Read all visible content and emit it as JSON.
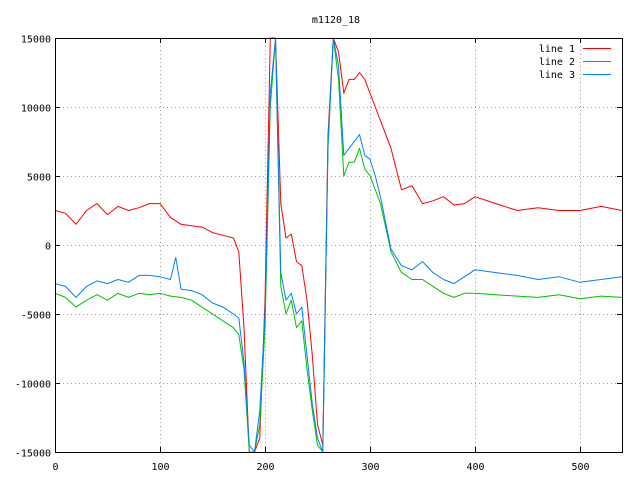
{
  "chart_data": {
    "type": "line",
    "title": "m1120_18",
    "xlabel": "",
    "ylabel": "",
    "xlim": [
      0,
      540
    ],
    "ylim": [
      -15000,
      15000
    ],
    "xticks": [
      0,
      100,
      200,
      300,
      400,
      500
    ],
    "yticks": [
      -15000,
      -10000,
      -5000,
      0,
      5000,
      10000,
      15000
    ],
    "grid": true,
    "legend_position": "top-right",
    "series": [
      {
        "name": "line 1",
        "color": "#ff0000",
        "x": [
          0,
          10,
          20,
          30,
          40,
          50,
          60,
          70,
          80,
          90,
          100,
          110,
          120,
          130,
          140,
          150,
          160,
          170,
          175,
          180,
          185,
          190,
          195,
          200,
          205,
          210,
          215,
          220,
          225,
          230,
          235,
          240,
          245,
          250,
          255,
          260,
          265,
          270,
          275,
          280,
          285,
          290,
          295,
          300,
          305,
          310,
          320,
          330,
          340,
          350,
          360,
          370,
          380,
          390,
          400,
          420,
          440,
          460,
          480,
          500,
          520,
          540
        ],
        "y": [
          2500,
          2300,
          1500,
          2500,
          3000,
          2200,
          2800,
          2500,
          2700,
          3000,
          3000,
          2000,
          1500,
          1400,
          1300,
          900,
          700,
          500,
          -500,
          -6000,
          -15000,
          -15000,
          -14000,
          -4000,
          15000,
          15000,
          3000,
          500,
          800,
          -1200,
          -1500,
          -4000,
          -8000,
          -13000,
          -14500,
          8000,
          15000,
          14000,
          11000,
          12000,
          12000,
          12500,
          12000,
          11000,
          10000,
          9000,
          7000,
          4000,
          4300,
          3000,
          3200,
          3500,
          2900,
          3000,
          3500,
          3000,
          2500,
          2700,
          2500,
          2500,
          2800,
          2500
        ]
      },
      {
        "name": "line 2",
        "color": "#00c000",
        "x": [
          0,
          10,
          20,
          30,
          40,
          50,
          60,
          70,
          80,
          90,
          100,
          110,
          120,
          130,
          140,
          150,
          160,
          170,
          175,
          180,
          185,
          190,
          195,
          200,
          205,
          210,
          215,
          220,
          225,
          230,
          235,
          240,
          245,
          250,
          255,
          260,
          265,
          270,
          275,
          280,
          285,
          290,
          295,
          300,
          305,
          310,
          320,
          330,
          340,
          350,
          360,
          370,
          380,
          390,
          400,
          420,
          440,
          460,
          480,
          500,
          520,
          540
        ],
        "y": [
          -3500,
          -3800,
          -4500,
          -4000,
          -3600,
          -4000,
          -3500,
          -3800,
          -3500,
          -3600,
          -3500,
          -3700,
          -3800,
          -4000,
          -4500,
          -5000,
          -5500,
          -6000,
          -6500,
          -9000,
          -15000,
          -15000,
          -13000,
          -6000,
          10000,
          15000,
          -3000,
          -5000,
          -4000,
          -6000,
          -5500,
          -9000,
          -12000,
          -14500,
          -15000,
          7000,
          15000,
          12000,
          5000,
          6000,
          6000,
          7000,
          5500,
          5000,
          4000,
          3000,
          -500,
          -2000,
          -2500,
          -2500,
          -3000,
          -3500,
          -3800,
          -3500,
          -3500,
          -3600,
          -3700,
          -3800,
          -3600,
          -3900,
          -3700,
          -3800
        ]
      },
      {
        "name": "line 3",
        "color": "#0080ff",
        "x": [
          0,
          10,
          20,
          30,
          40,
          50,
          60,
          70,
          80,
          90,
          100,
          110,
          115,
          120,
          130,
          140,
          150,
          160,
          170,
          175,
          180,
          185,
          190,
          195,
          200,
          205,
          210,
          215,
          220,
          225,
          230,
          235,
          240,
          245,
          250,
          255,
          260,
          265,
          270,
          275,
          280,
          285,
          290,
          295,
          300,
          305,
          310,
          320,
          330,
          340,
          350,
          360,
          370,
          380,
          390,
          400,
          420,
          440,
          460,
          480,
          500,
          520,
          540
        ],
        "y": [
          -2800,
          -3000,
          -3800,
          -3000,
          -2600,
          -2800,
          -2500,
          -2700,
          -2200,
          -2200,
          -2300,
          -2500,
          -900,
          -3200,
          -3300,
          -3600,
          -4200,
          -4500,
          -5000,
          -5300,
          -8500,
          -14500,
          -15000,
          -12000,
          -5000,
          11000,
          15000,
          -2000,
          -4000,
          -3500,
          -5000,
          -4500,
          -8000,
          -11500,
          -14000,
          -15000,
          7500,
          15000,
          13000,
          6500,
          7000,
          7500,
          8000,
          6500,
          6200,
          5000,
          3500,
          -300,
          -1500,
          -1800,
          -1200,
          -2000,
          -2500,
          -2800,
          -2300,
          -1800,
          -2000,
          -2200,
          -2500,
          -2300,
          -2700,
          -2500,
          -2300
        ]
      }
    ]
  }
}
